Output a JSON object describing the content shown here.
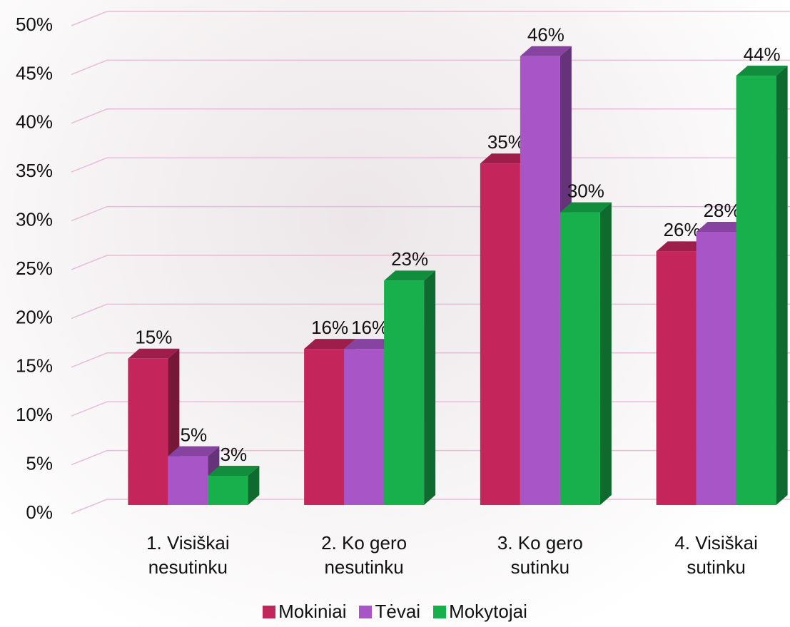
{
  "chart_data": {
    "type": "bar3d",
    "categories": [
      "1. Visiškai nesutinku",
      "2. Ko gero nesutinku",
      "3. Ko gero sutinku",
      "4. Visiškai sutinku"
    ],
    "series": [
      {
        "name": "Mokiniai",
        "color": "#c4265c",
        "values": [
          15,
          16,
          35,
          26
        ],
        "value_labels": [
          "15%",
          "16%",
          "35%",
          "26%"
        ]
      },
      {
        "name": "Tėvai",
        "color": "#a855c8",
        "values": [
          5,
          16,
          46,
          28
        ],
        "value_labels": [
          "5%",
          "16%",
          "46%",
          "28%"
        ]
      },
      {
        "name": "Mokytojai",
        "color": "#17b04c",
        "values": [
          3,
          23,
          30,
          44
        ],
        "value_labels": [
          "3%",
          "23%",
          "30%",
          "44%"
        ]
      }
    ],
    "ylim": [
      0,
      50
    ],
    "yticks": [
      {
        "value": 0,
        "label": "0%"
      },
      {
        "value": 5,
        "label": "5%"
      },
      {
        "value": 10,
        "label": "10%"
      },
      {
        "value": 15,
        "label": "15%"
      },
      {
        "value": 20,
        "label": "20%"
      },
      {
        "value": 25,
        "label": "25%"
      },
      {
        "value": 30,
        "label": "30%"
      },
      {
        "value": 35,
        "label": "35%"
      },
      {
        "value": 40,
        "label": "40%"
      },
      {
        "value": 45,
        "label": "45%"
      },
      {
        "value": 50,
        "label": "50%"
      }
    ],
    "grid": true,
    "legend": "bottom"
  }
}
